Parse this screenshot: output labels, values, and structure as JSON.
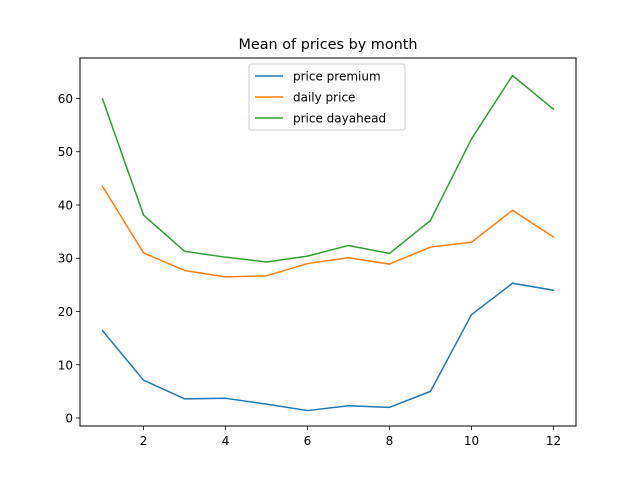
{
  "chart_data": {
    "type": "line",
    "title": "Mean of prices by month",
    "xlabel": "",
    "ylabel": "",
    "x": [
      1,
      2,
      3,
      4,
      5,
      6,
      7,
      8,
      9,
      10,
      11,
      12
    ],
    "xlim": [
      0.45,
      12.55
    ],
    "ylim": [
      -1.5,
      67.6
    ],
    "xticks": [
      2,
      4,
      6,
      8,
      10,
      12
    ],
    "yticks": [
      0,
      10,
      20,
      30,
      40,
      50,
      60
    ],
    "grid": false,
    "legend_position": "top-center",
    "series": [
      {
        "name": "price premium",
        "color": "#1f77b4",
        "values": [
          16.4,
          7.1,
          3.6,
          3.7,
          2.6,
          1.4,
          2.3,
          2.0,
          5.0,
          19.4,
          25.3,
          24.0
        ]
      },
      {
        "name": "daily price",
        "color": "#ff7f0e",
        "values": [
          43.5,
          31.0,
          27.7,
          26.5,
          26.7,
          29.0,
          30.1,
          28.9,
          32.1,
          33.0,
          39.0,
          34.0
        ]
      },
      {
        "name": "price dayahead",
        "color": "#2ca02c",
        "values": [
          59.9,
          38.1,
          31.3,
          30.2,
          29.3,
          30.4,
          32.4,
          30.9,
          37.1,
          52.4,
          64.3,
          58.0
        ]
      }
    ]
  }
}
